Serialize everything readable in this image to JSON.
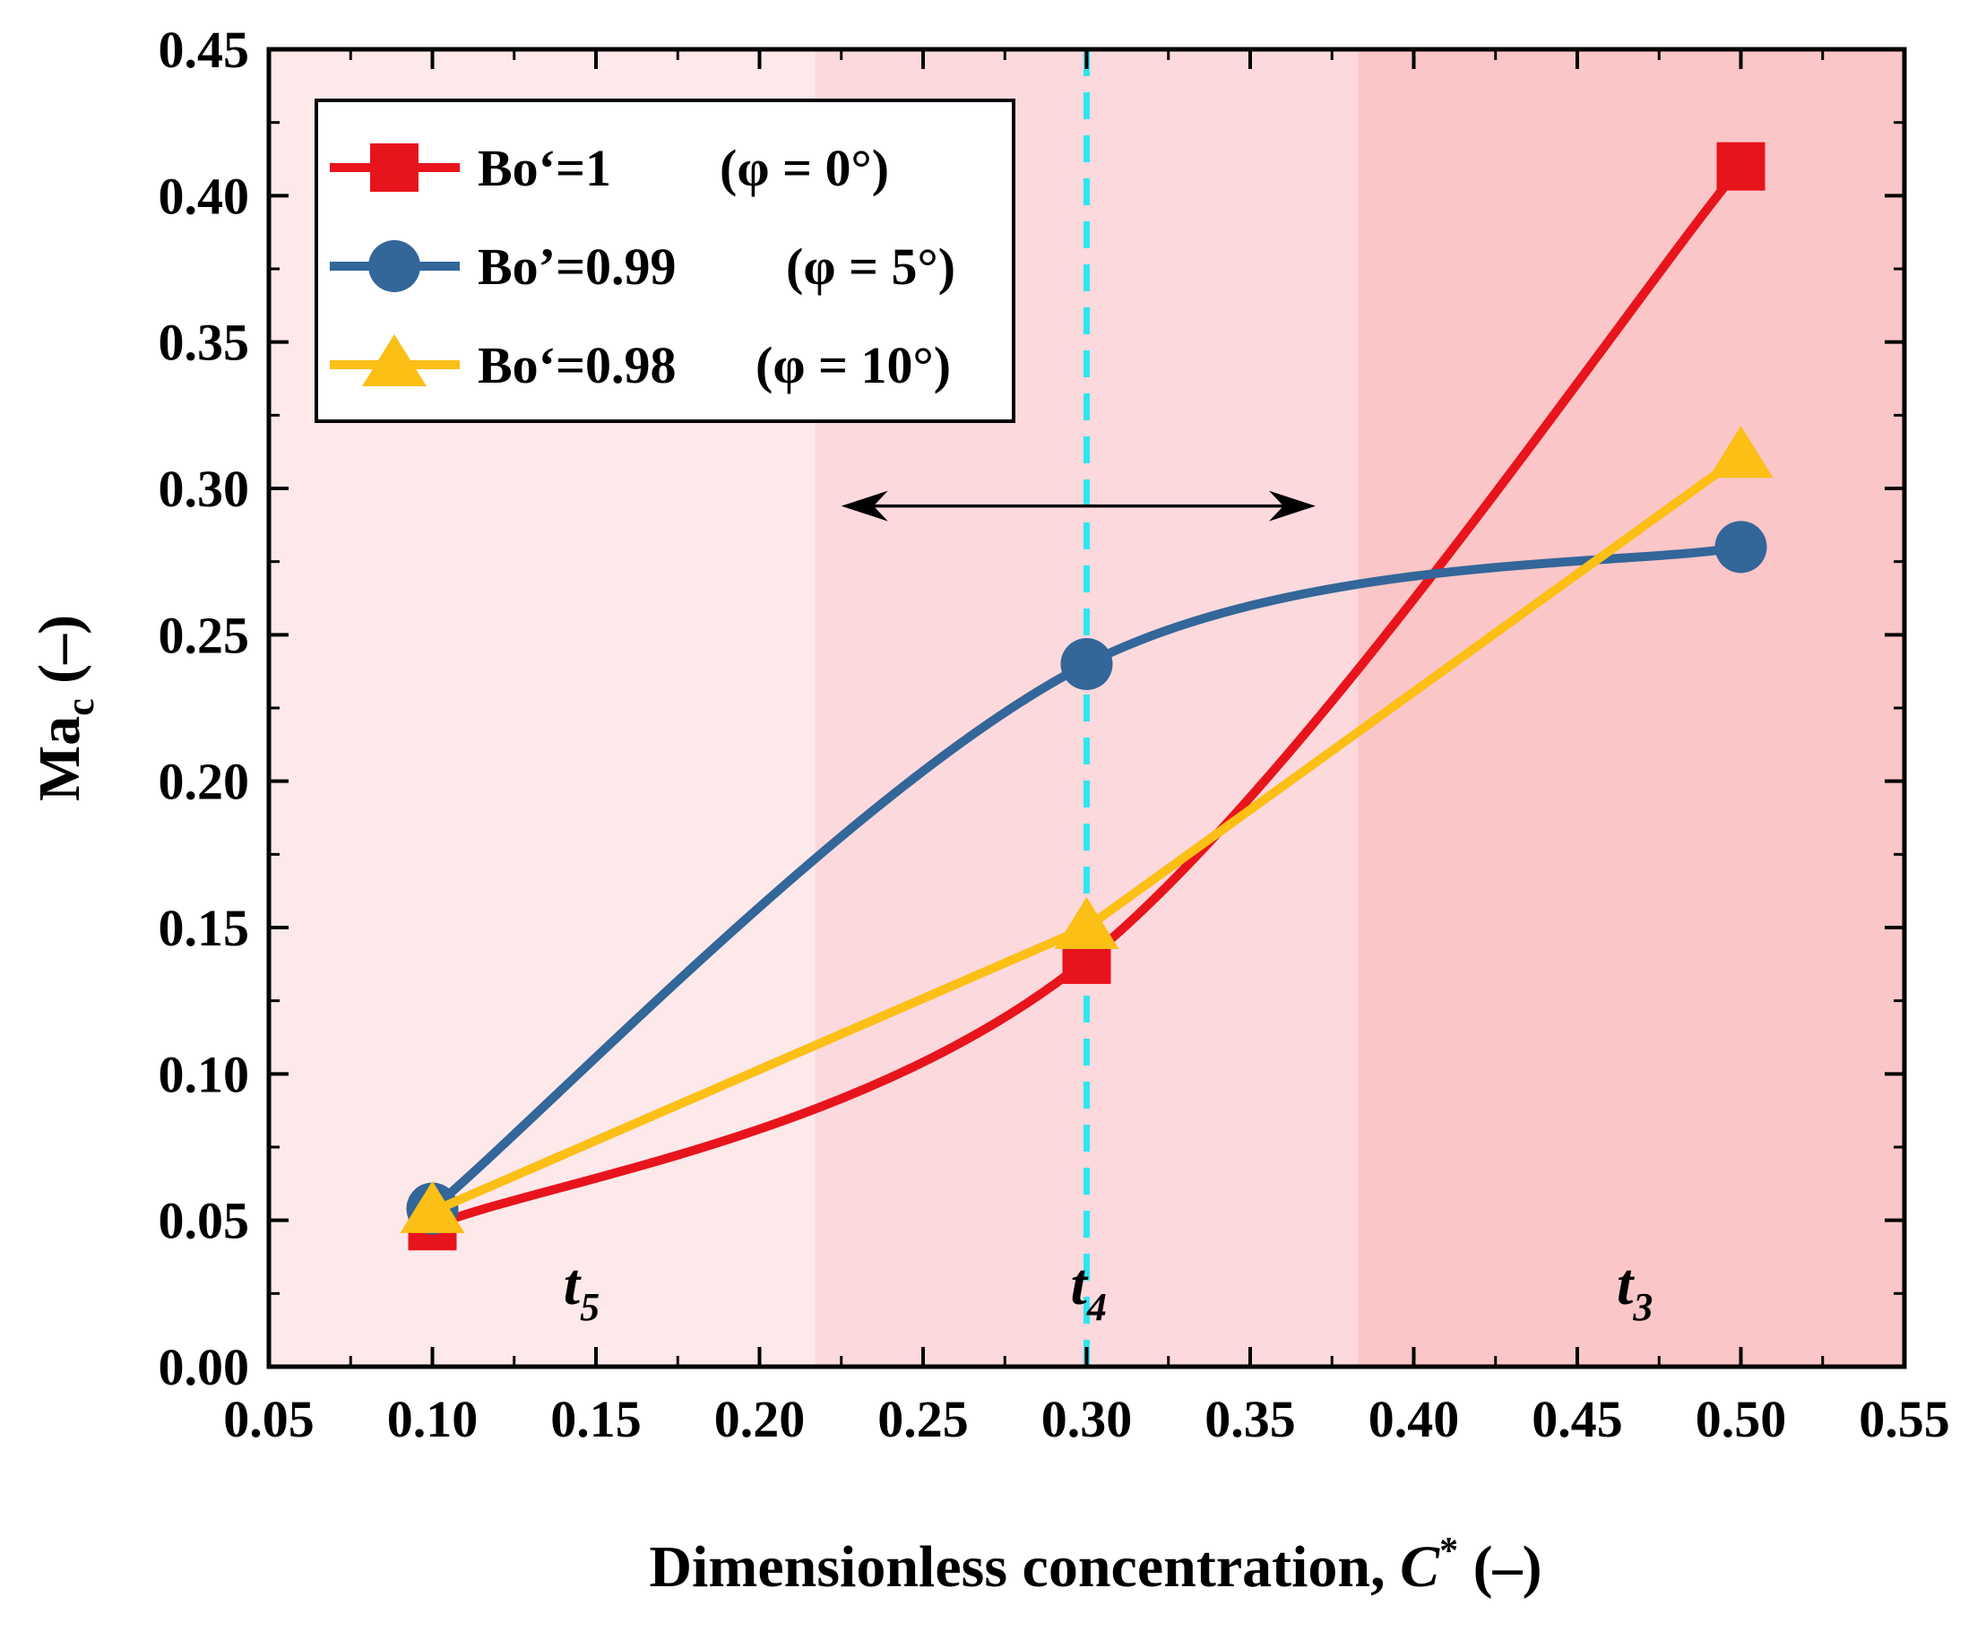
{
  "chart_data": {
    "type": "line",
    "xlabel": "Dimensionless concentration, C* (–)",
    "xlabel_parts": {
      "main": "Dimensionless concentration, ",
      "var": "C",
      "sup": "*",
      "unit": " (–)"
    },
    "ylabel": "Ma_c (–)",
    "ylabel_parts": {
      "main": "Ma",
      "sub": "c",
      "unit": " (–)"
    },
    "xlim": [
      0.05,
      0.55
    ],
    "ylim": [
      0.0,
      0.45
    ],
    "x_ticks": [
      "0.05",
      "0.10",
      "0.15",
      "0.20",
      "0.25",
      "0.30",
      "0.35",
      "0.40",
      "0.45",
      "0.50",
      "0.55"
    ],
    "y_ticks": [
      "0.00",
      "0.05",
      "0.10",
      "0.15",
      "0.20",
      "0.25",
      "0.30",
      "0.35",
      "0.40",
      "0.45"
    ],
    "grid": false,
    "legend_position": "top-left",
    "series": [
      {
        "name": "Bo‘=1",
        "condition": "(φ = 0°)",
        "marker": "square",
        "color": "#e8141c",
        "x": [
          0.1,
          0.3,
          0.5
        ],
        "values": [
          0.048,
          0.139,
          0.41
        ]
      },
      {
        "name": "Bo’=0.99",
        "condition": "(φ = 5°)",
        "marker": "circle",
        "color": "#336699",
        "x": [
          0.1,
          0.3,
          0.5
        ],
        "values": [
          0.054,
          0.24,
          0.28
        ]
      },
      {
        "name": "Bo‘=0.98",
        "condition": "(φ = 10°)",
        "marker": "triangle",
        "color": "#fbbf16",
        "x": [
          0.1,
          0.3,
          0.5
        ],
        "values": [
          0.053,
          0.15,
          0.311
        ]
      }
    ],
    "regions": [
      {
        "label": "t",
        "sub": "5",
        "from": 0.05,
        "to": 0.217,
        "color": "#fde8ea",
        "label_x": 0.145
      },
      {
        "label": "t",
        "sub": "4",
        "from": 0.217,
        "to": 0.383,
        "color": "#fcd9dd",
        "label_x": 0.3
      },
      {
        "label": "t",
        "sub": "3",
        "from": 0.383,
        "to": 0.55,
        "color": "#fbc6c8",
        "label_x": 0.467
      }
    ],
    "reference_line": {
      "x": 0.3,
      "color": "#2ee6ee"
    },
    "annotation_arrow": {
      "from": 0.225,
      "to": 0.37,
      "y": 0.294
    }
  }
}
